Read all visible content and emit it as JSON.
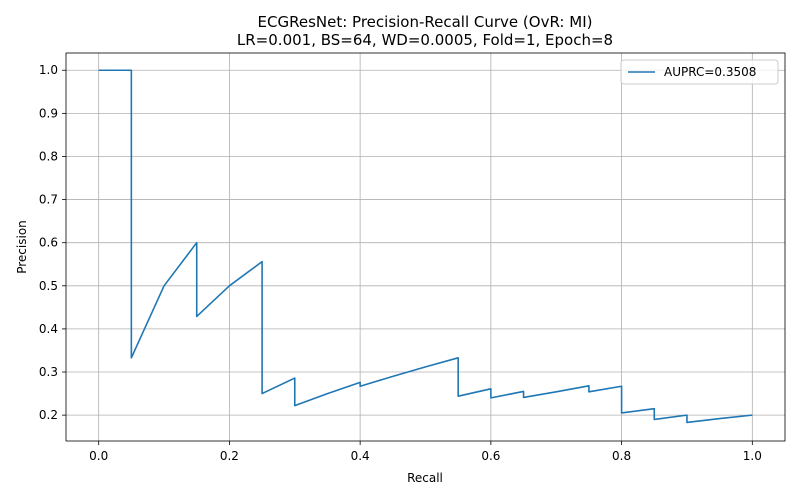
{
  "chart_data": {
    "type": "line",
    "title": "ECGResNet: Precision-Recall Curve (OvR: MI)",
    "subtitle": "LR=0.001, BS=64, WD=0.0005, Fold=1, Epoch=8",
    "xlabel": "Recall",
    "ylabel": "Precision",
    "xlim": [
      -0.05,
      1.05
    ],
    "ylim": [
      0.14,
      1.04
    ],
    "xticks": [
      0.0,
      0.2,
      0.4,
      0.6,
      0.8,
      1.0
    ],
    "xtick_labels": [
      "0.0",
      "0.2",
      "0.4",
      "0.6",
      "0.8",
      "1.0"
    ],
    "yticks": [
      0.2,
      0.3,
      0.4,
      0.5,
      0.6,
      0.7,
      0.8,
      0.9,
      1.0
    ],
    "ytick_labels": [
      "0.2",
      "0.3",
      "0.4",
      "0.5",
      "0.6",
      "0.7",
      "0.8",
      "0.9",
      "1.0"
    ],
    "grid": true,
    "legend_position": "top-right",
    "series": [
      {
        "name": "AUPRC=0.3508",
        "color": "#1f77b4",
        "x": [
          0.0,
          0.05,
          0.05,
          0.1,
          0.15,
          0.15,
          0.2,
          0.25,
          0.25,
          0.3,
          0.3,
          0.35,
          0.4,
          0.4,
          0.45,
          0.5,
          0.55,
          0.55,
          0.6,
          0.6,
          0.65,
          0.65,
          0.7,
          0.75,
          0.75,
          0.8,
          0.8,
          0.85,
          0.85,
          0.9,
          0.9,
          0.95,
          1.0
        ],
        "y": [
          1.0,
          1.0,
          0.333,
          0.5,
          0.6,
          0.429,
          0.5,
          0.556,
          0.25,
          0.286,
          0.222,
          0.25,
          0.276,
          0.267,
          0.29,
          0.312,
          0.333,
          0.244,
          0.261,
          0.24,
          0.255,
          0.241,
          0.254,
          0.268,
          0.254,
          0.267,
          0.205,
          0.215,
          0.19,
          0.2,
          0.183,
          0.192,
          0.2
        ]
      }
    ]
  }
}
